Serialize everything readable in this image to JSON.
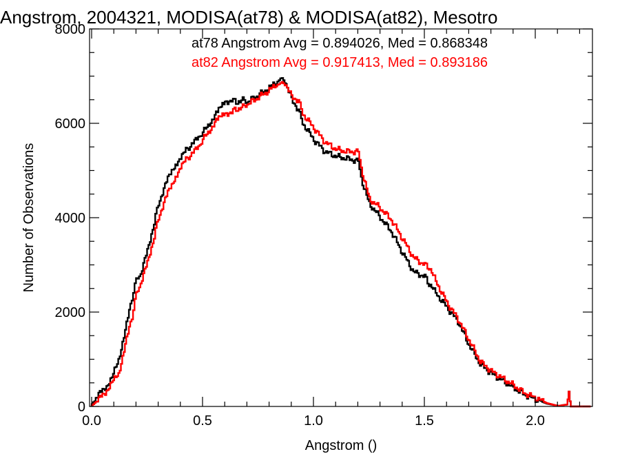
{
  "chart_data": {
    "type": "line",
    "title": "Angstrom, 2004321, MODISA(at78) & MODISA(at82), Mesotro",
    "xlabel": "Angstrom ()",
    "ylabel": "Number of Observations",
    "xlim": [
      0.0,
      2.25
    ],
    "ylim": [
      0,
      8000
    ],
    "xticks": [
      "0.0",
      "0.5",
      "1.0",
      "1.5",
      "2.0"
    ],
    "yticks": [
      "0",
      "2000",
      "4000",
      "6000",
      "8000"
    ],
    "annotations": {
      "at78": "at78 Angstrom Avg = 0.894026, Med = 0.868348",
      "at82": "at82 Angstrom Avg = 0.917413, Med = 0.893186"
    },
    "series": [
      {
        "key": "at78",
        "color": "#000000",
        "x": [
          0.0,
          0.03,
          0.06,
          0.09,
          0.12,
          0.15,
          0.18,
          0.2,
          0.22,
          0.25,
          0.28,
          0.3,
          0.33,
          0.36,
          0.4,
          0.43,
          0.45,
          0.48,
          0.5,
          0.53,
          0.56,
          0.6,
          0.63,
          0.65,
          0.68,
          0.7,
          0.75,
          0.8,
          0.83,
          0.85,
          0.87,
          0.88,
          0.9,
          0.93,
          0.95,
          1.0,
          1.05,
          1.1,
          1.15,
          1.2,
          1.22,
          1.25,
          1.3,
          1.35,
          1.4,
          1.45,
          1.5,
          1.52,
          1.55,
          1.6,
          1.65,
          1.7,
          1.75,
          1.8,
          1.85,
          1.9,
          1.95,
          2.0,
          2.05,
          2.1,
          2.14,
          2.15,
          2.16,
          2.2,
          2.25
        ],
        "values": [
          50,
          250,
          400,
          600,
          1000,
          1600,
          2300,
          2700,
          2800,
          3300,
          3900,
          4300,
          4700,
          5000,
          5300,
          5450,
          5550,
          5700,
          5800,
          6000,
          6200,
          6450,
          6500,
          6450,
          6500,
          6450,
          6600,
          6750,
          6850,
          6950,
          6900,
          6800,
          6500,
          6300,
          6000,
          5650,
          5400,
          5300,
          5250,
          5200,
          4700,
          4300,
          4000,
          3700,
          3250,
          2850,
          2750,
          2600,
          2400,
          2100,
          1800,
          1300,
          900,
          700,
          550,
          400,
          250,
          150,
          60,
          10,
          40,
          250,
          0,
          0,
          0
        ]
      },
      {
        "key": "at82",
        "color": "#ff0000",
        "x": [
          0.0,
          0.03,
          0.06,
          0.09,
          0.12,
          0.15,
          0.18,
          0.2,
          0.22,
          0.25,
          0.28,
          0.3,
          0.33,
          0.36,
          0.4,
          0.43,
          0.45,
          0.48,
          0.5,
          0.53,
          0.56,
          0.6,
          0.63,
          0.65,
          0.68,
          0.7,
          0.75,
          0.8,
          0.83,
          0.85,
          0.87,
          0.88,
          0.9,
          0.93,
          0.95,
          1.0,
          1.05,
          1.1,
          1.15,
          1.2,
          1.22,
          1.25,
          1.3,
          1.35,
          1.4,
          1.45,
          1.5,
          1.52,
          1.55,
          1.6,
          1.65,
          1.7,
          1.75,
          1.8,
          1.85,
          1.9,
          1.95,
          2.0,
          2.05,
          2.1,
          2.14,
          2.15,
          2.16,
          2.2,
          2.25
        ],
        "values": [
          20,
          150,
          300,
          500,
          700,
          1300,
          1900,
          2400,
          2600,
          3050,
          3600,
          4000,
          4400,
          4700,
          5100,
          5250,
          5350,
          5500,
          5650,
          5850,
          6050,
          6200,
          6250,
          6300,
          6350,
          6400,
          6550,
          6700,
          6800,
          6850,
          6850,
          6800,
          6550,
          6500,
          6200,
          5900,
          5600,
          5450,
          5400,
          5400,
          4900,
          4400,
          4200,
          3950,
          3550,
          3150,
          3000,
          2950,
          2650,
          2200,
          1850,
          1400,
          950,
          750,
          600,
          450,
          280,
          180,
          70,
          10,
          40,
          250,
          0,
          0,
          0
        ]
      }
    ]
  }
}
